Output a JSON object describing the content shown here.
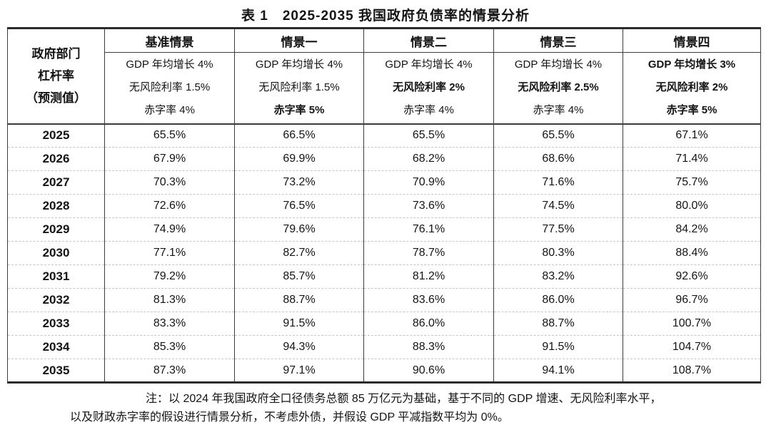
{
  "title": "表 1　2025-2035 我国政府负债率的情景分析",
  "table": {
    "corner": {
      "line1": "政府部门",
      "line2": "杠杆率",
      "line3": "（预测值）"
    },
    "scenarios": [
      {
        "name": "基准情景",
        "gdp": "GDP 年均增长 4%",
        "risk_free_rate": "无风险利率 1.5%",
        "deficit": "赤字率 4%",
        "bold": {
          "gdp": false,
          "risk_free_rate": false,
          "deficit": false
        }
      },
      {
        "name": "情景一",
        "gdp": "GDP 年均增长 4%",
        "risk_free_rate": "无风险利率 1.5%",
        "deficit": "赤字率 5%",
        "bold": {
          "gdp": false,
          "risk_free_rate": false,
          "deficit": true
        }
      },
      {
        "name": "情景二",
        "gdp": "GDP 年均增长 4%",
        "risk_free_rate": "无风险利率 2%",
        "deficit": "赤字率 4%",
        "bold": {
          "gdp": false,
          "risk_free_rate": true,
          "deficit": false
        }
      },
      {
        "name": "情景三",
        "gdp": "GDP 年均增长 4%",
        "risk_free_rate": "无风险利率 2.5%",
        "deficit": "赤字率 4%",
        "bold": {
          "gdp": false,
          "risk_free_rate": true,
          "deficit": false
        }
      },
      {
        "name": "情景四",
        "gdp": "GDP 年均增长 3%",
        "risk_free_rate": "无风险利率 2%",
        "deficit": "赤字率 5%",
        "bold": {
          "gdp": true,
          "risk_free_rate": true,
          "deficit": true
        }
      }
    ],
    "years": [
      "2025",
      "2026",
      "2027",
      "2028",
      "2029",
      "2030",
      "2031",
      "2032",
      "2033",
      "2034",
      "2035"
    ],
    "rows": [
      [
        "65.5%",
        "66.5%",
        "65.5%",
        "65.5%",
        "67.1%"
      ],
      [
        "67.9%",
        "69.9%",
        "68.2%",
        "68.6%",
        "71.4%"
      ],
      [
        "70.3%",
        "73.2%",
        "70.9%",
        "71.6%",
        "75.7%"
      ],
      [
        "72.6%",
        "76.5%",
        "73.6%",
        "74.5%",
        "80.0%"
      ],
      [
        "74.9%",
        "79.6%",
        "76.1%",
        "77.5%",
        "84.2%"
      ],
      [
        "77.1%",
        "82.7%",
        "78.7%",
        "80.3%",
        "88.4%"
      ],
      [
        "79.2%",
        "85.7%",
        "81.2%",
        "83.2%",
        "92.6%"
      ],
      [
        "81.3%",
        "88.7%",
        "83.6%",
        "86.0%",
        "96.7%"
      ],
      [
        "83.3%",
        "91.5%",
        "86.0%",
        "88.7%",
        "100.7%"
      ],
      [
        "85.3%",
        "94.3%",
        "88.3%",
        "91.5%",
        "104.7%"
      ],
      [
        "87.3%",
        "97.1%",
        "90.6%",
        "94.1%",
        "108.7%"
      ]
    ]
  },
  "note": {
    "line1": "注：以 2024 年我国政府全口径债务总额 85 万亿元为基础，基于不同的 GDP 增速、无风险利率水平，",
    "line2": "以及财政赤字率的假设进行情景分析，不考虑外债，并假设 GDP 平减指数平均为 0%。"
  }
}
